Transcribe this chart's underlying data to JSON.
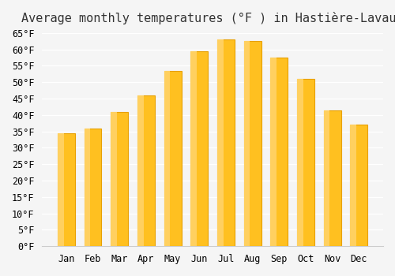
{
  "title": "Average monthly temperatures (°F ) in Hastière-Lavaux",
  "months": [
    "Jan",
    "Feb",
    "Mar",
    "Apr",
    "May",
    "Jun",
    "Jul",
    "Aug",
    "Sep",
    "Oct",
    "Nov",
    "Dec"
  ],
  "values": [
    34.5,
    36.0,
    41.0,
    46.0,
    53.5,
    59.5,
    63.0,
    62.5,
    57.5,
    51.0,
    41.5,
    37.0
  ],
  "bar_color": "#FFC020",
  "bar_edge_color": "#E8A000",
  "background_color": "#F5F5F5",
  "grid_color": "#FFFFFF",
  "ylim": [
    0,
    65
  ],
  "yticks": [
    0,
    5,
    10,
    15,
    20,
    25,
    30,
    35,
    40,
    45,
    50,
    55,
    60,
    65
  ],
  "title_fontsize": 11,
  "tick_fontsize": 8.5
}
